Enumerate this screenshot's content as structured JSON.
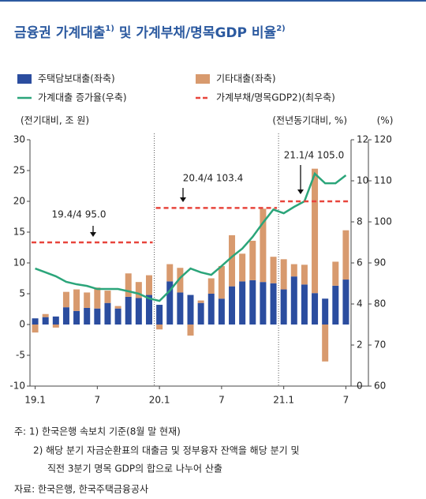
{
  "chart_data": {
    "type": "bar",
    "title": [
      "금융권 가계대출",
      "1)",
      " 및 가계부채/명목GDP 비율",
      "2)"
    ],
    "y_label": "(전기대비, 조 원)",
    "y2_label": "(전년동기대비, %)",
    "y3_label": "(%)",
    "categories": [
      "19.1",
      null,
      null,
      null,
      null,
      null,
      "7",
      null,
      null,
      null,
      null,
      null,
      "20.1",
      null,
      null,
      null,
      null,
      null,
      "7",
      null,
      null,
      null,
      null,
      null,
      "21.1",
      null,
      null,
      null,
      null,
      null,
      "7"
    ],
    "series": [
      {
        "name": "주택담보대출(좌축)",
        "type": "bar",
        "color": "#2b4d9f",
        "values": [
          1.0,
          1.2,
          1.3,
          2.8,
          2.2,
          2.7,
          2.6,
          3.5,
          2.6,
          4.5,
          4.3,
          4.8,
          3.2,
          7.0,
          5.2,
          4.8,
          3.5,
          5.0,
          4.2,
          6.2,
          7.0,
          7.2,
          6.9,
          6.7,
          5.7,
          7.8,
          6.5,
          5.1,
          4.2,
          6.3,
          7.3
        ]
      },
      {
        "name": "기타대출(좌축)",
        "type": "bar",
        "color": "#d89a6e",
        "values": [
          -1.3,
          0.5,
          -0.5,
          2.5,
          3.5,
          2.5,
          3.4,
          2.0,
          0.4,
          3.8,
          2.6,
          3.2,
          -0.8,
          2.8,
          4.0,
          -1.8,
          0.4,
          2.5,
          5.3,
          8.3,
          4.5,
          6.4,
          11.9,
          4.3,
          4.9,
          2.0,
          3.2,
          20.2,
          -6.0,
          3.9,
          8.0
        ]
      },
      {
        "name": "가계대출 증가율(우축)",
        "type": "line",
        "color": "#2ba57a",
        "axis": "y2",
        "values": [
          5.73,
          5.54,
          5.35,
          5.08,
          4.96,
          4.88,
          4.73,
          4.73,
          4.73,
          4.62,
          4.5,
          4.27,
          4.15,
          4.65,
          5.27,
          5.73,
          5.54,
          5.42,
          5.85,
          6.3,
          6.7,
          7.27,
          7.96,
          8.6,
          8.42,
          8.73,
          9.0,
          10.35,
          9.88,
          9.88,
          10.27
        ]
      },
      {
        "name": "가계부채/명목GDP2)(최우축)",
        "type": "dashed",
        "color": "#e8453c",
        "axis": "y3",
        "values": [
          95.0,
          95.0,
          95.0,
          95.0,
          95.0,
          95.0,
          95.0,
          95.0,
          95.0,
          95.0,
          95.0,
          95.0,
          103.4,
          103.4,
          103.4,
          103.4,
          103.4,
          103.4,
          103.4,
          103.4,
          103.4,
          103.4,
          103.4,
          103.4,
          105.0,
          105.0,
          105.0,
          105.0,
          105.0,
          105.0,
          105.0
        ]
      }
    ],
    "ylim": [
      -10,
      30
    ],
    "yticks": [
      -10,
      -5,
      0,
      5,
      10,
      15,
      20,
      25,
      30
    ],
    "y2lim": [
      0,
      12
    ],
    "y2ticks": [
      0,
      2,
      4,
      6,
      8,
      10,
      12
    ],
    "y3lim": [
      60,
      120
    ],
    "y3ticks": [
      60,
      70,
      80,
      90,
      100,
      110,
      120
    ],
    "grid": false,
    "annotations": [
      {
        "text": "19.4/4 95.0"
      },
      {
        "text": "20.4/4 103.4"
      },
      {
        "text": "21.1/4 105.0"
      }
    ]
  },
  "notes": [
    "주: 1) 한국은행 속보치 기준(8월 말 현재)",
    "2) 해당 분기 자금순환표의 대출금 및 정부융자 잔액을 해당 분기 및",
    "직전 3분기 명목 GDP의 합으로 나누어 산출",
    "자료: 한국은행, 한국주택금융공사"
  ]
}
